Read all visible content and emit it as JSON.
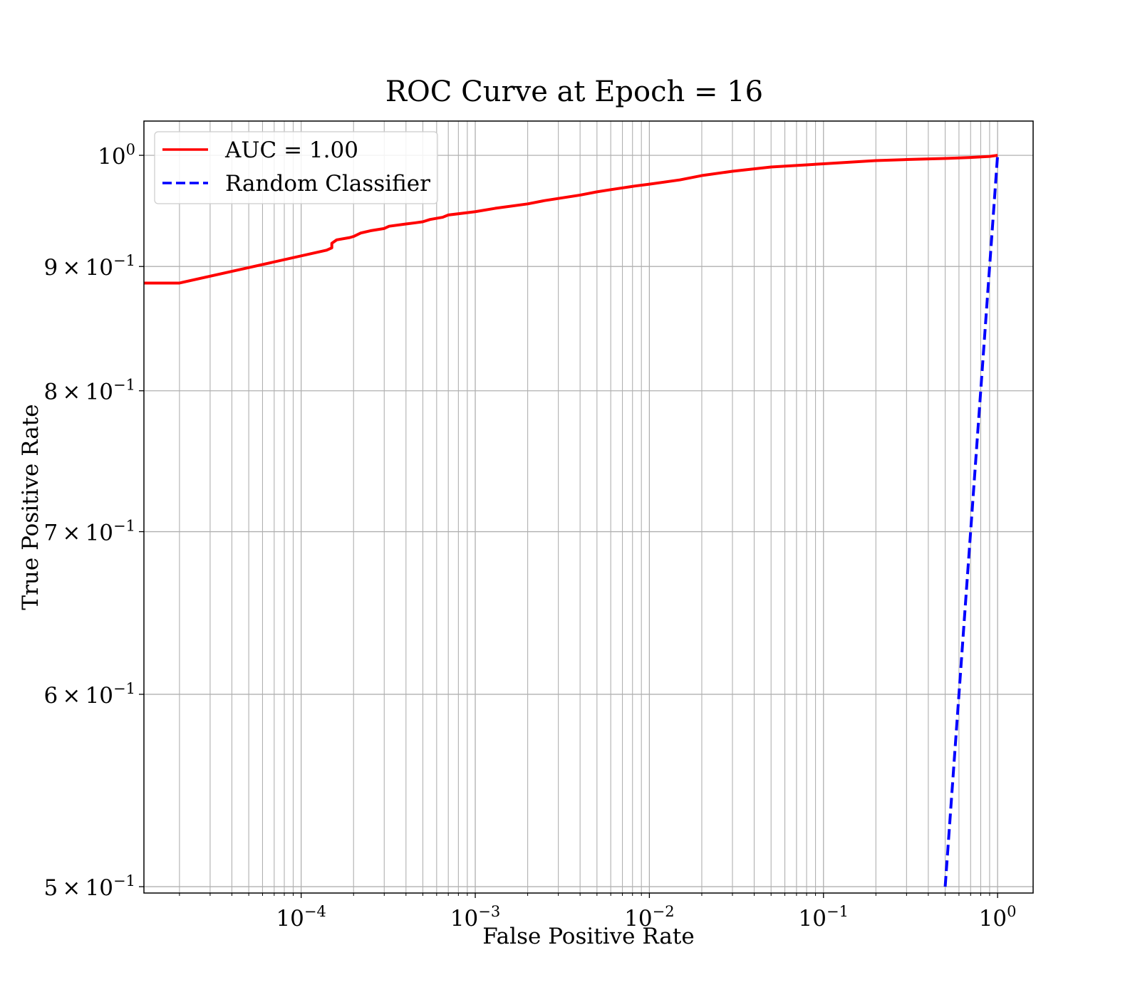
{
  "chart_data": {
    "type": "line",
    "title": "ROC Curve at Epoch = 16",
    "xlabel": "False Positive Rate",
    "ylabel": "True Positive Rate",
    "xscale": "log",
    "yscale": "log",
    "xlim": [
      1.25e-05,
      1.6
    ],
    "ylim": [
      0.497,
      1.033
    ],
    "grid": "both (major and minor)",
    "legend_placement": "upper left",
    "x_ticks": [
      {
        "value": 0.0001,
        "base": "10",
        "exp": "−4"
      },
      {
        "value": 0.001,
        "base": "10",
        "exp": "−3"
      },
      {
        "value": 0.01,
        "base": "10",
        "exp": "−2"
      },
      {
        "value": 0.1,
        "base": "10",
        "exp": "−1"
      },
      {
        "value": 1,
        "base": "10",
        "exp": "0"
      }
    ],
    "y_ticks": [
      {
        "value": 1.0,
        "mant": "",
        "base": "10",
        "exp": "0"
      },
      {
        "value": 0.9,
        "mant": "9",
        "base": "10",
        "exp": "−1"
      },
      {
        "value": 0.8,
        "mant": "8",
        "base": "10",
        "exp": "−1"
      },
      {
        "value": 0.7,
        "mant": "7",
        "base": "10",
        "exp": "−1"
      },
      {
        "value": 0.6,
        "mant": "6",
        "base": "10",
        "exp": "−1"
      },
      {
        "value": 0.5,
        "mant": "5",
        "base": "10",
        "exp": "−1"
      }
    ],
    "series": [
      {
        "name": "AUC = 1.00",
        "color": "#ff0000",
        "style": "solid",
        "x": [
          1.25e-05,
          2e-05,
          0.00014,
          0.00015,
          0.00015,
          0.00016,
          0.00019,
          0.0002,
          0.00022,
          0.00025,
          0.0003,
          0.00032,
          0.0004,
          0.00045,
          0.0005,
          0.00055,
          0.00065,
          0.0007,
          0.001,
          0.0013,
          0.002,
          0.0025,
          0.004,
          0.005,
          0.006,
          0.008,
          0.01,
          0.015,
          0.02,
          0.03,
          0.05,
          0.08,
          0.1,
          0.2,
          0.3,
          0.5,
          0.7,
          0.9,
          1.0
        ],
        "y": [
          0.886,
          0.886,
          0.914,
          0.916,
          0.92,
          0.923,
          0.925,
          0.926,
          0.929,
          0.931,
          0.933,
          0.935,
          0.937,
          0.938,
          0.939,
          0.941,
          0.943,
          0.945,
          0.948,
          0.951,
          0.955,
          0.958,
          0.963,
          0.966,
          0.968,
          0.971,
          0.973,
          0.977,
          0.981,
          0.985,
          0.989,
          0.991,
          0.992,
          0.995,
          0.996,
          0.997,
          0.998,
          0.999,
          1.0
        ]
      },
      {
        "name": "Random Classifier",
        "color": "#0000ff",
        "style": "dashed",
        "x": [
          0.5,
          0.6,
          0.7,
          0.8,
          0.9,
          1.0
        ],
        "y": [
          0.5,
          0.6,
          0.7,
          0.8,
          0.9,
          1.0
        ]
      }
    ]
  }
}
